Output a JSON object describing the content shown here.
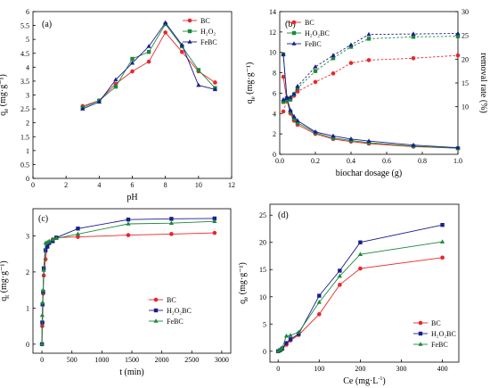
{
  "chart_data": [
    {
      "panel": "(a)",
      "type": "line",
      "xlabel": "pH",
      "ylabel_main": "q",
      "ylabel_sub": "e",
      "ylabel_unit": "(mg·g⁻¹)",
      "xlim": [
        0,
        12
      ],
      "ylim": [
        0,
        6
      ],
      "xticks": [
        0,
        2,
        4,
        6,
        8,
        10,
        12
      ],
      "yticks": [
        0,
        0.5,
        1,
        1.5,
        2,
        2.5,
        3,
        3.5,
        4,
        4.5,
        5,
        5.5,
        6
      ],
      "legend_position": "top-right",
      "series": [
        {
          "name": "BC",
          "color": "#e8262a",
          "marker": "circle",
          "x": [
            3,
            4,
            5,
            6,
            7,
            8,
            9,
            10,
            11
          ],
          "y": [
            2.6,
            2.8,
            3.4,
            3.85,
            4.2,
            5.25,
            4.55,
            3.85,
            3.45
          ]
        },
        {
          "name": "H₂O₂",
          "color": "#1a8a3a",
          "marker": "square",
          "x": [
            3,
            4,
            5,
            6,
            7,
            8,
            9,
            10,
            11
          ],
          "y": [
            2.55,
            2.8,
            3.3,
            4.3,
            4.55,
            5.55,
            4.75,
            3.9,
            3.25
          ]
        },
        {
          "name": "FeBC",
          "color": "#1c1d8e",
          "marker": "triangle",
          "x": [
            3,
            4,
            5,
            6,
            7,
            8,
            9,
            10,
            11
          ],
          "y": [
            2.5,
            2.75,
            3.55,
            4.15,
            4.75,
            5.6,
            4.8,
            3.35,
            3.2
          ]
        }
      ]
    },
    {
      "panel": "(b)",
      "type": "line",
      "xlabel": "biochar dosage (g)",
      "ylabel_main": "q",
      "ylabel_sub": "e",
      "ylabel_unit": "(mg·g⁻¹)",
      "ylabel_right": "removal rate (%)",
      "xlim": [
        0,
        1.0
      ],
      "ylim": [
        0,
        14
      ],
      "ylim_right": [
        0,
        30
      ],
      "xticks": [
        0.0,
        0.2,
        0.4,
        0.6,
        0.8,
        1.0
      ],
      "yticks": [
        0,
        2,
        4,
        6,
        8,
        10,
        12,
        14
      ],
      "yticks_right": [
        10,
        15,
        20,
        25,
        30
      ],
      "legend_position": "top-left",
      "series": [
        {
          "name": "BC",
          "color": "#e8262a",
          "marker": "circle",
          "axis": "left",
          "x": [
            0.02,
            0.04,
            0.06,
            0.08,
            0.1,
            0.2,
            0.3,
            0.4,
            0.5,
            0.75,
            1.0
          ],
          "y": [
            7.6,
            5.3,
            4.0,
            3.3,
            2.9,
            2.0,
            1.5,
            1.25,
            1.05,
            0.75,
            0.6
          ]
        },
        {
          "name": "H₂O₂BC",
          "color": "#1a8a3a",
          "marker": "square",
          "axis": "left",
          "x": [
            0.02,
            0.04,
            0.06,
            0.08,
            0.1,
            0.2,
            0.3,
            0.4,
            0.5,
            0.75,
            1.0
          ],
          "y": [
            9.8,
            5.5,
            4.2,
            3.5,
            3.1,
            2.1,
            1.6,
            1.35,
            1.15,
            0.8,
            0.6
          ]
        },
        {
          "name": "FeBC",
          "color": "#1c1d8e",
          "marker": "triangle",
          "axis": "left",
          "x": [
            0.02,
            0.04,
            0.06,
            0.08,
            0.1,
            0.2,
            0.3,
            0.4,
            0.5,
            0.75,
            1.0
          ],
          "y": [
            9.8,
            5.6,
            4.3,
            3.7,
            3.3,
            2.2,
            1.8,
            1.5,
            1.3,
            0.9,
            0.65
          ]
        },
        {
          "name": "",
          "color": "#e8262a",
          "marker": "circle",
          "axis": "right",
          "dashed": true,
          "x": [
            0.02,
            0.04,
            0.06,
            0.08,
            0.1,
            0.2,
            0.3,
            0.4,
            0.5,
            0.75,
            1.0
          ],
          "y": [
            9.0,
            11.2,
            11.8,
            12.3,
            13.2,
            15.2,
            17.0,
            19.2,
            19.8,
            20.2,
            20.8
          ]
        },
        {
          "name": "",
          "color": "#1a8a3a",
          "marker": "square",
          "axis": "right",
          "dashed": true,
          "x": [
            0.02,
            0.04,
            0.06,
            0.08,
            0.1,
            0.2,
            0.3,
            0.4,
            0.5,
            0.75,
            1.0
          ],
          "y": [
            11.0,
            11.3,
            11.5,
            12.6,
            13.9,
            17.5,
            20.2,
            22.6,
            24.3,
            24.7,
            24.8
          ]
        },
        {
          "name": "",
          "color": "#1c1d8e",
          "marker": "triangle",
          "axis": "right",
          "dashed": true,
          "x": [
            0.02,
            0.04,
            0.06,
            0.08,
            0.1,
            0.2,
            0.3,
            0.4,
            0.5,
            0.75,
            1.0
          ],
          "y": [
            11.5,
            11.8,
            12.0,
            12.7,
            14.3,
            18.4,
            20.8,
            23.0,
            25.2,
            25.3,
            25.4
          ]
        }
      ]
    },
    {
      "panel": "(c)",
      "type": "line",
      "xlabel": "t (min)",
      "ylabel_main": "q",
      "ylabel_sub": "t",
      "ylabel_unit": "(mg·g⁻¹)",
      "xlim": [
        -150,
        3150
      ],
      "ylim": [
        -0.25,
        3.75
      ],
      "xticks": [
        0,
        500,
        1000,
        1500,
        2000,
        2500,
        3000
      ],
      "yticks": [
        0,
        1,
        2,
        3
      ],
      "legend_position": "bottom-right",
      "series": [
        {
          "name": "BC",
          "color": "#e8262a",
          "marker": "circle",
          "x": [
            0,
            5,
            10,
            20,
            30,
            60,
            90,
            120,
            180,
            240,
            600,
            1440,
            2160,
            2880
          ],
          "y": [
            0,
            0.5,
            0.6,
            1.4,
            1.9,
            2.35,
            2.7,
            2.8,
            2.9,
            2.95,
            2.97,
            3.02,
            3.05,
            3.08
          ]
        },
        {
          "name": "H₂O₂BC",
          "color": "#1c1d8e",
          "marker": "square",
          "x": [
            0,
            5,
            10,
            20,
            30,
            60,
            90,
            120,
            180,
            240,
            600,
            1440,
            2160,
            2880
          ],
          "y": [
            0,
            0.6,
            1.1,
            1.45,
            2.1,
            2.6,
            2.7,
            2.8,
            2.85,
            2.95,
            3.2,
            3.45,
            3.47,
            3.48
          ]
        },
        {
          "name": "FeBC",
          "color": "#1a8a3a",
          "marker": "triangle",
          "x": [
            0,
            5,
            10,
            20,
            30,
            60,
            90,
            120,
            180,
            240,
            600,
            1440,
            2160,
            2880
          ],
          "y": [
            0,
            0.8,
            1.15,
            1.5,
            2.05,
            2.8,
            2.82,
            2.85,
            2.9,
            2.93,
            3.05,
            3.33,
            3.35,
            3.4
          ]
        }
      ]
    },
    {
      "panel": "(d)",
      "type": "line",
      "xlabel_main": "Ce (mg·L",
      "xlabel_sup": "-1",
      "xlabel_end": ")",
      "ylabel_main": "q",
      "ylabel_sub": "e",
      "ylabel_unit": "(mg·g⁻¹)",
      "xlim": [
        -20,
        440
      ],
      "ylim": [
        -2,
        27
      ],
      "xticks": [
        0,
        100,
        200,
        300,
        400
      ],
      "yticks": [
        0,
        5,
        10,
        15,
        20,
        25
      ],
      "legend_position": "bottom-right",
      "series": [
        {
          "name": "BC",
          "color": "#e8262a",
          "marker": "circle",
          "x": [
            0,
            5,
            10,
            20,
            30,
            50,
            100,
            150,
            200,
            400
          ],
          "y": [
            0,
            0.2,
            0.4,
            1.2,
            2.0,
            3.0,
            6.8,
            12.2,
            15.2,
            17.2
          ]
        },
        {
          "name": "H₂O₂BC",
          "color": "#1c1d8e",
          "marker": "square",
          "x": [
            0,
            5,
            10,
            20,
            30,
            50,
            100,
            150,
            200,
            400
          ],
          "y": [
            0,
            0.2,
            0.5,
            1.5,
            2.2,
            3.2,
            10.2,
            14.8,
            20.0,
            23.2
          ]
        },
        {
          "name": "FeBC",
          "color": "#1a8a3a",
          "marker": "triangle",
          "x": [
            0,
            5,
            10,
            20,
            30,
            50,
            100,
            150,
            200,
            400
          ],
          "y": [
            0,
            0.3,
            0.6,
            2.8,
            2.9,
            3.5,
            9.0,
            13.8,
            17.8,
            20.1
          ]
        }
      ]
    }
  ]
}
